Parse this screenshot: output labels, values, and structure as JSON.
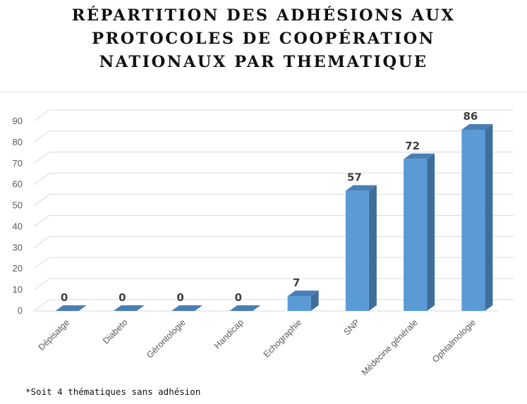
{
  "title_lines": [
    "RÉPARTITION DES ADHÉSIONS AUX",
    "PROTOCOLES DE COOPÉRATION",
    "NATIONAUX PAR THEMATIQUE"
  ],
  "footnote": "*Soit 4 thématiques sans adhésion",
  "colors": {
    "bar_front": "#5b9bd5",
    "bar_side": "#3e6e9c",
    "bar_top": "#4a7fb5",
    "grid": "#d9d9d9",
    "text": "#595959",
    "label": "#404040"
  },
  "chart_data": {
    "type": "bar",
    "categories": [
      "Dépisatge",
      "Diabeto",
      "Gérontologie",
      "Handicap",
      "Echographie",
      "SNP",
      "Médecine générale",
      "Ophtalmologie"
    ],
    "values": [
      0,
      0,
      0,
      0,
      7,
      57,
      72,
      86
    ],
    "data_labels": [
      "0",
      "0",
      "0",
      "0",
      "7",
      "57",
      "72",
      "86"
    ],
    "ylim": [
      0,
      90
    ],
    "yticks": [
      0,
      10,
      20,
      30,
      40,
      50,
      60,
      70,
      80,
      90
    ],
    "grid": true,
    "style": "3d-column"
  }
}
